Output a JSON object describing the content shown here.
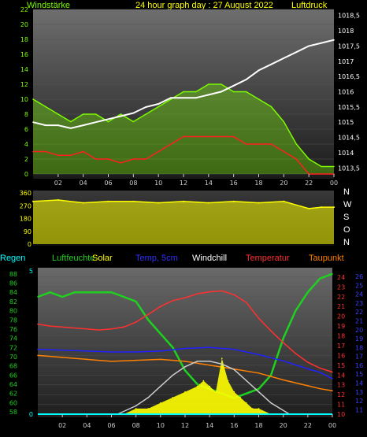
{
  "header": {
    "title": "24 hour graph day : 27 August 2022",
    "left_label": "Windstärke",
    "right_label": "Luftdruck"
  },
  "labels": {
    "regen": "Regen",
    "luftfeuchte": "Luftfeuchte",
    "solar": "Solar",
    "temp5cm": "Temp, 5cm",
    "windchill": "Windchill",
    "temperatur": "Temperatur",
    "taupunkt": "Taupunkt"
  },
  "colors": {
    "wind_gust": "#7cfc00",
    "wind_avg": "#ff2020",
    "pressure": "#ffffff",
    "direction": "#ffff00",
    "humidity": "#20d020",
    "solar": "#ffff00",
    "temp5cm": "#2020ff",
    "windchill": "#ff3030",
    "temperature": "#ff3030",
    "dewpoint": "#ff8000",
    "rain": "#00ffff",
    "solar_curve": "#cccccc"
  },
  "chart_data": [
    {
      "type": "line",
      "name": "wind-pressure",
      "x_ticks": [
        "02",
        "04",
        "06",
        "08",
        "10",
        "12",
        "14",
        "16",
        "18",
        "20",
        "22",
        "00"
      ],
      "y_left_ticks": [
        "0",
        "2",
        "4",
        "6",
        "8",
        "10",
        "12",
        "14",
        "16",
        "18",
        "20",
        "22"
      ],
      "y_right_ticks": [
        "1013,5",
        "1014",
        "1014,5",
        "1015",
        "1015,5",
        "1016",
        "1016,5",
        "1017",
        "1017,5",
        "1018",
        "1018,5"
      ],
      "ylim_left": [
        0,
        22
      ],
      "ylim_right": [
        1013.3,
        1018.7
      ],
      "series": [
        {
          "name": "Windstärke",
          "role": "wind_gust",
          "x": [
            0,
            1,
            2,
            3,
            4,
            5,
            6,
            7,
            8,
            9,
            10,
            11,
            12,
            13,
            14,
            15,
            16,
            17,
            18,
            19,
            20,
            21,
            22,
            23,
            24
          ],
          "values": [
            10,
            9,
            8,
            7,
            8,
            8,
            7,
            8,
            7,
            8,
            9,
            10,
            11,
            11,
            12,
            12,
            11,
            11,
            10,
            9,
            7,
            4,
            2,
            1,
            1
          ]
        },
        {
          "name": "Windstärke Mittel",
          "role": "wind_avg",
          "x": [
            0,
            1,
            2,
            3,
            4,
            5,
            6,
            7,
            8,
            9,
            10,
            11,
            12,
            13,
            14,
            15,
            16,
            17,
            18,
            19,
            20,
            21,
            22,
            23,
            24
          ],
          "values": [
            3,
            3,
            2.5,
            2.5,
            3,
            2,
            2,
            1.5,
            2,
            2,
            3,
            4,
            5,
            5,
            5,
            5,
            5,
            4,
            4,
            4,
            3,
            2,
            0,
            0,
            0
          ]
        },
        {
          "name": "Luftdruck",
          "role": "pressure",
          "x": [
            0,
            1,
            2,
            3,
            4,
            5,
            6,
            7,
            8,
            9,
            10,
            11,
            12,
            13,
            14,
            15,
            16,
            17,
            18,
            19,
            20,
            21,
            22,
            23,
            24
          ],
          "values": [
            1015.0,
            1014.9,
            1014.9,
            1014.8,
            1014.9,
            1015.0,
            1015.1,
            1015.2,
            1015.3,
            1015.5,
            1015.6,
            1015.8,
            1015.8,
            1015.8,
            1015.9,
            1016.0,
            1016.2,
            1016.4,
            1016.7,
            1016.9,
            1017.1,
            1017.3,
            1017.5,
            1017.6,
            1017.7
          ]
        }
      ]
    },
    {
      "type": "line",
      "name": "wind-direction",
      "y_ticks": [
        "0",
        "90",
        "180",
        "270",
        "360"
      ],
      "y_right_labels": [
        "N",
        "W",
        "S",
        "O",
        "N"
      ],
      "ylim": [
        0,
        360
      ],
      "series": [
        {
          "name": "Windrichtung",
          "role": "direction",
          "x": [
            0,
            2,
            4,
            6,
            8,
            10,
            12,
            14,
            16,
            18,
            20,
            22,
            23,
            24
          ],
          "values": [
            300,
            310,
            290,
            300,
            300,
            290,
            300,
            290,
            300,
            290,
            300,
            250,
            260,
            260
          ]
        }
      ]
    },
    {
      "type": "line",
      "name": "weather",
      "x_ticks": [
        "02",
        "04",
        "06",
        "08",
        "10",
        "12",
        "14",
        "16",
        "18",
        "20",
        "22",
        "00"
      ],
      "y_humidity_ticks": [
        "58",
        "60",
        "62",
        "64",
        "66",
        "68",
        "70",
        "72",
        "74",
        "76",
        "78",
        "80",
        "82",
        "84",
        "86",
        "88"
      ],
      "y_rain_ticks": [
        "0",
        "5"
      ],
      "y_temp_ticks": [
        "10",
        "11",
        "12",
        "13",
        "14",
        "15",
        "16",
        "17",
        "18",
        "19",
        "20",
        "21",
        "22",
        "23",
        "24"
      ],
      "y_temp5_ticks": [
        "11",
        "12",
        "13",
        "14",
        "15",
        "16",
        "17",
        "18",
        "19",
        "20",
        "21",
        "22",
        "23",
        "24",
        "25",
        "26"
      ],
      "ylim_humidity": [
        57.5,
        89
      ],
      "ylim_temp": [
        10,
        24.8
      ],
      "ylim_temp5": [
        10.5,
        26.8
      ],
      "series": [
        {
          "name": "Luftfeuchte",
          "role": "humidity",
          "x": [
            0,
            1,
            2,
            3,
            4,
            5,
            6,
            7,
            8,
            9,
            10,
            11,
            12,
            13,
            14,
            15,
            16,
            17,
            18,
            19,
            20,
            21,
            22,
            23,
            24
          ],
          "values": [
            83,
            84,
            83,
            84,
            84,
            84,
            84,
            83,
            82,
            78,
            75,
            72,
            67,
            64,
            63,
            62,
            61,
            62,
            63,
            66,
            74,
            80,
            84,
            87,
            88
          ]
        },
        {
          "name": "Temperatur",
          "role": "temperature",
          "x": [
            0,
            1,
            2,
            3,
            4,
            5,
            6,
            7,
            8,
            9,
            10,
            11,
            12,
            13,
            14,
            15,
            16,
            17,
            18,
            19,
            20,
            21,
            22,
            23,
            24
          ],
          "values": [
            19.2,
            19.0,
            18.9,
            18.8,
            18.7,
            18.6,
            18.7,
            18.9,
            19.4,
            20.2,
            21.0,
            21.6,
            21.9,
            22.3,
            22.5,
            22.6,
            22.2,
            21.4,
            19.8,
            18.5,
            17.3,
            16.2,
            15.3,
            14.7,
            14.3
          ]
        },
        {
          "name": "Temp, 5cm",
          "role": "temp5cm",
          "x": [
            0,
            2,
            4,
            6,
            8,
            10,
            12,
            14,
            16,
            18,
            20,
            22,
            23,
            24
          ],
          "values": [
            17.8,
            17.7,
            17.6,
            17.5,
            17.5,
            17.6,
            17.9,
            18.0,
            17.8,
            17.2,
            16.5,
            15.6,
            15.2,
            14.5
          ]
        },
        {
          "name": "Taupunkt",
          "role": "dewpoint",
          "x": [
            0,
            2,
            4,
            6,
            8,
            10,
            12,
            14,
            16,
            18,
            20,
            22,
            23,
            24
          ],
          "values": [
            16.0,
            15.8,
            15.6,
            15.4,
            15.5,
            15.6,
            15.4,
            15.0,
            14.6,
            14.2,
            13.5,
            12.9,
            12.6,
            12.4
          ]
        },
        {
          "name": "Solar",
          "role": "solar",
          "x": [
            7,
            8,
            9,
            10,
            11,
            12,
            13,
            13.5,
            14,
            14.5,
            15,
            15.5,
            16,
            16.5,
            17,
            17.5,
            18,
            19,
            20
          ],
          "values": [
            0,
            1,
            1,
            2,
            3,
            4,
            5,
            6,
            5,
            4,
            10,
            6,
            4,
            3,
            2,
            1,
            1,
            0,
            0
          ]
        },
        {
          "name": "Solar max",
          "role": "solar_curve",
          "x": [
            6.5,
            8,
            9,
            10,
            11,
            12,
            13,
            14,
            15,
            16,
            17,
            18,
            19,
            20.5
          ],
          "values": [
            0,
            1.5,
            3,
            5,
            7,
            8.5,
            9.5,
            9.5,
            9,
            8,
            6,
            4,
            2,
            0
          ]
        }
      ]
    }
  ]
}
